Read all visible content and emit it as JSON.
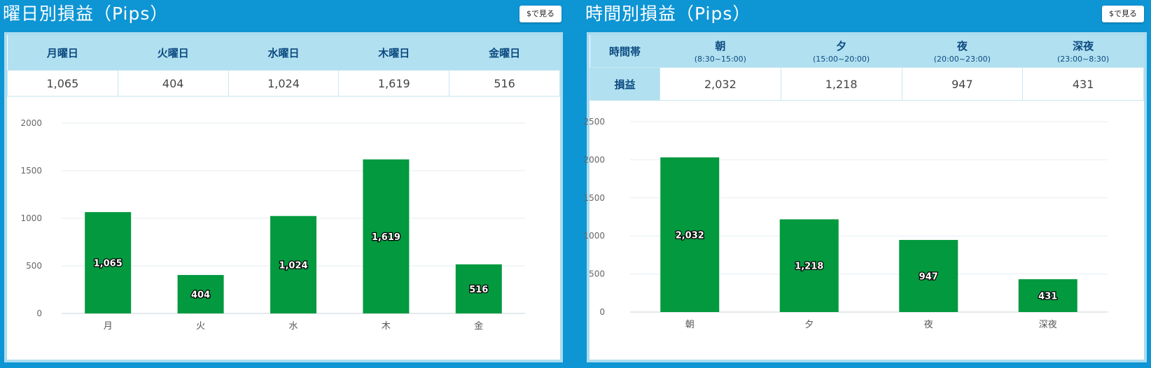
{
  "colors": {
    "background": "#0e95d4",
    "bar": "#03993f",
    "header": "#b1e0f0",
    "header_text": "#0b4a80"
  },
  "left": {
    "title": "曜日別損益（Pips）",
    "usd_button": "$で見る",
    "table": {
      "headers": [
        "月曜日",
        "火曜日",
        "水曜日",
        "木曜日",
        "金曜日"
      ],
      "values": [
        "1,065",
        "404",
        "1,024",
        "1,619",
        "516"
      ]
    }
  },
  "right": {
    "title": "時間別損益（Pips）",
    "usd_button": "$で見る",
    "table": {
      "corner": "時間帯",
      "row_label": "損益",
      "headers": [
        {
          "label": "朝",
          "sub": "(8:30~15:00)"
        },
        {
          "label": "夕",
          "sub": "(15:00~20:00)"
        },
        {
          "label": "夜",
          "sub": "(20:00~23:00)"
        },
        {
          "label": "深夜",
          "sub": "(23:00~8:30)"
        }
      ],
      "values": [
        "2,032",
        "1,218",
        "947",
        "431"
      ]
    }
  },
  "chart_data": [
    {
      "type": "bar",
      "title": "曜日別損益（Pips）",
      "categories": [
        "月",
        "火",
        "水",
        "木",
        "金"
      ],
      "values": [
        1065,
        404,
        1024,
        1619,
        516
      ],
      "data_labels": [
        "1,065",
        "404",
        "1,024",
        "1,619",
        "516"
      ],
      "ylim": [
        0,
        2000
      ],
      "yticks": [
        0,
        500,
        1000,
        1500,
        2000
      ],
      "grid": true
    },
    {
      "type": "bar",
      "title": "時間別損益（Pips）",
      "categories": [
        "朝",
        "夕",
        "夜",
        "深夜"
      ],
      "values": [
        2032,
        1218,
        947,
        431
      ],
      "data_labels": [
        "2,032",
        "1,218",
        "947",
        "431"
      ],
      "ylim": [
        0,
        2500
      ],
      "yticks": [
        0,
        500,
        1000,
        1500,
        2000,
        2500
      ],
      "grid": true
    }
  ]
}
